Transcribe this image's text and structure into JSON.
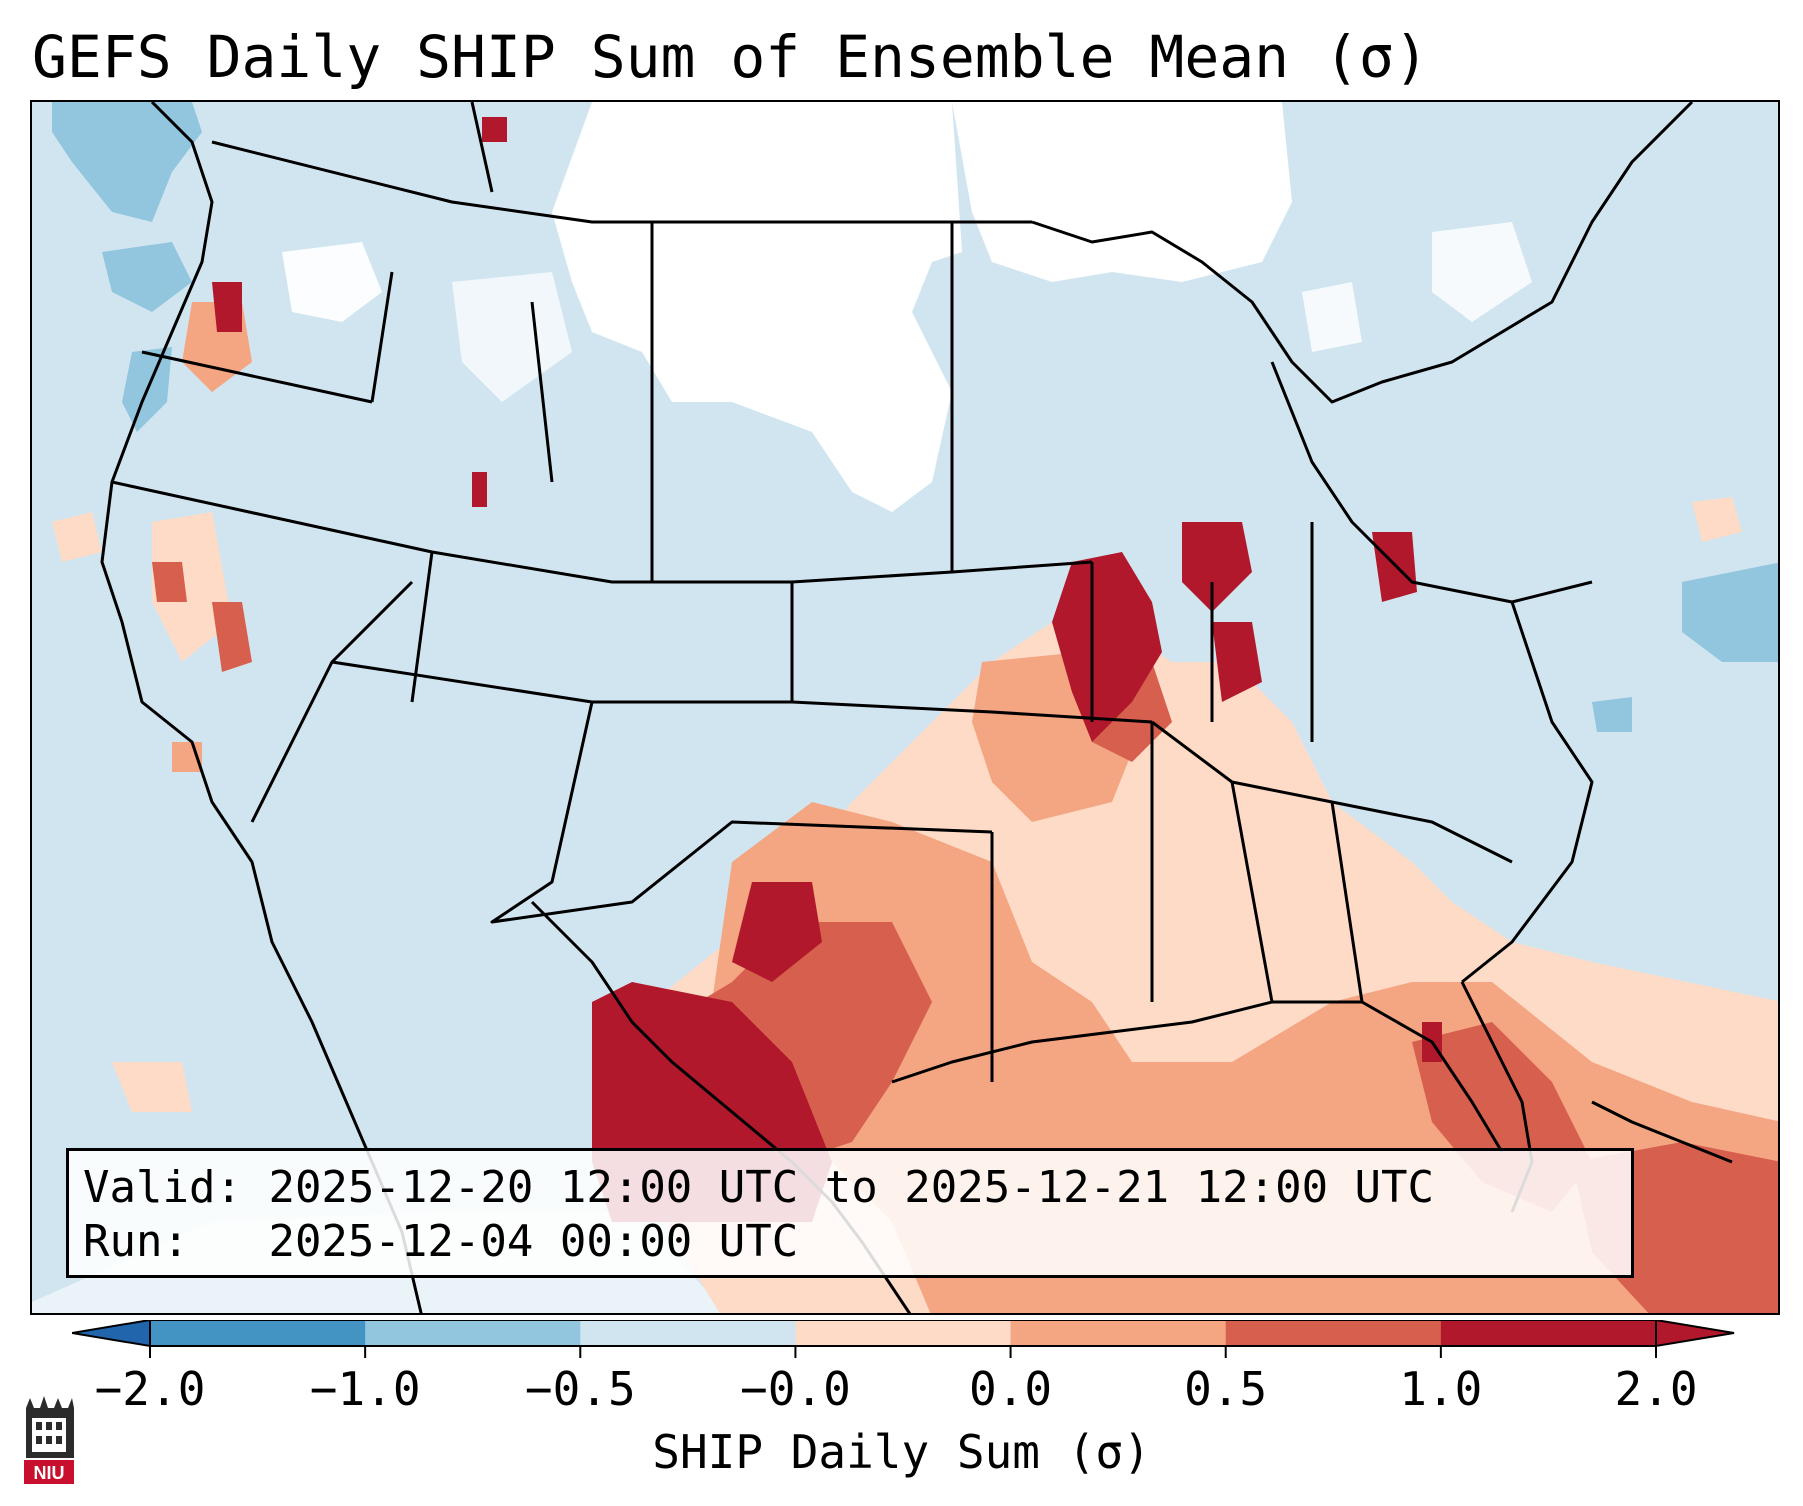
{
  "title": "GEFS Daily SHIP Sum of Ensemble Mean (σ)",
  "info": {
    "valid_label": "Valid:",
    "valid_value": "2025-12-20 12:00 UTC to 2025-12-21 12:00 UTC",
    "run_label": "Run:",
    "run_value": "2025-12-04 00:00 UTC"
  },
  "colorbar": {
    "label": "SHIP Daily Sum (σ)",
    "ticks": [
      "−2.0",
      "−1.0",
      "−0.5",
      "−0.0",
      "0.0",
      "0.5",
      "1.0",
      "2.0"
    ],
    "colors": [
      "#4393c3",
      "#92c5de",
      "#d1e5f0",
      "#ffffff",
      "#fddbc7",
      "#f4a582",
      "#d6604d",
      "#b2182b"
    ],
    "extend": "both"
  },
  "logo": {
    "text": "NIU",
    "colors": {
      "bg": "#2b2b2b",
      "accent": "#c8102e"
    }
  },
  "colors": {
    "base": "#d1e5f0",
    "neutral": "#ffffff",
    "light_red": "#fddbc7",
    "mid_red": "#f4a582",
    "red": "#d6604d",
    "dark_red": "#b2182b",
    "light_blue": "#92c5de"
  }
}
